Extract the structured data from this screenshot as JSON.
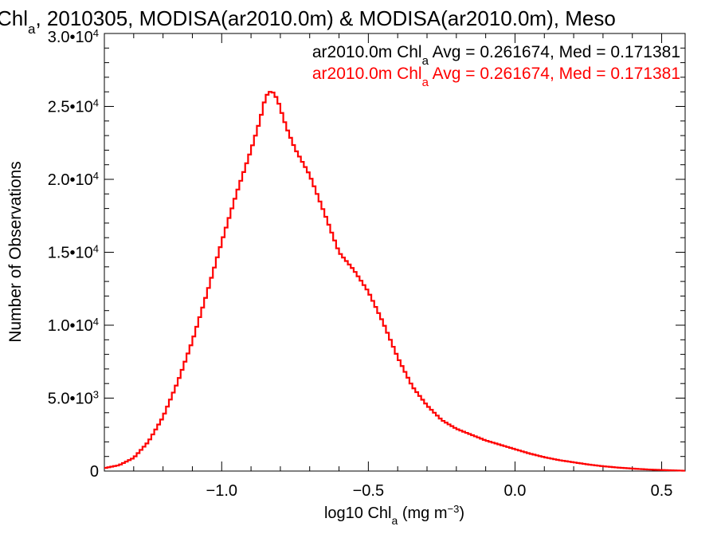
{
  "chart_data": {
    "type": "line",
    "title_parts": [
      "Chl",
      "a",
      ", 2010305, MODISA(ar2010.0m) & MODISA(ar2010.0m), Meso"
    ],
    "xlabel_parts": [
      "log10 Chl",
      "a",
      " (mg m",
      "−3",
      ")"
    ],
    "ylabel": "Number of Observations",
    "xlim": [
      -1.4,
      0.58
    ],
    "ylim": [
      0,
      30000
    ],
    "xticks": [
      {
        "value": -1.0,
        "label": "−1.0"
      },
      {
        "value": -0.5,
        "label": "−0.5"
      },
      {
        "value": 0.0,
        "label": "0.0"
      },
      {
        "value": 0.5,
        "label": "0.5"
      }
    ],
    "yticks": [
      {
        "value": 0,
        "mant": "0",
        "exp": ""
      },
      {
        "value": 5000,
        "mant": "5.0•10",
        "exp": "3"
      },
      {
        "value": 10000,
        "mant": "1.0•10",
        "exp": "4"
      },
      {
        "value": 15000,
        "mant": "1.5•10",
        "exp": "4"
      },
      {
        "value": 20000,
        "mant": "2.0•10",
        "exp": "4"
      },
      {
        "value": 25000,
        "mant": "2.5•10",
        "exp": "4"
      },
      {
        "value": 30000,
        "mant": "3.0•10",
        "exp": "4"
      }
    ],
    "annotations": [
      {
        "pre": "ar2010.0m Chl",
        "sub": "a",
        "post": " Avg = 0.261674, Med = 0.171381",
        "color": "#000000"
      },
      {
        "pre": "ar2010.0m Chl",
        "sub": "a",
        "post": " Avg = 0.261674, Med = 0.171381",
        "color": "#ff0000"
      }
    ],
    "series": [
      {
        "color": "#ff0000",
        "points": [
          [
            -1.4,
            200
          ],
          [
            -1.35,
            400
          ],
          [
            -1.3,
            900
          ],
          [
            -1.25,
            2000
          ],
          [
            -1.2,
            3700
          ],
          [
            -1.15,
            6100
          ],
          [
            -1.1,
            8900
          ],
          [
            -1.05,
            12200
          ],
          [
            -1.0,
            15700
          ],
          [
            -0.95,
            19000
          ],
          [
            -0.9,
            22000
          ],
          [
            -0.87,
            24000
          ],
          [
            -0.85,
            25700
          ],
          [
            -0.83,
            26100
          ],
          [
            -0.81,
            25500
          ],
          [
            -0.78,
            23600
          ],
          [
            -0.75,
            22100
          ],
          [
            -0.7,
            20300
          ],
          [
            -0.65,
            17700
          ],
          [
            -0.6,
            15000
          ],
          [
            -0.55,
            13800
          ],
          [
            -0.5,
            12300
          ],
          [
            -0.45,
            10200
          ],
          [
            -0.4,
            7800
          ],
          [
            -0.35,
            5800
          ],
          [
            -0.3,
            4500
          ],
          [
            -0.25,
            3500
          ],
          [
            -0.2,
            2900
          ],
          [
            -0.15,
            2500
          ],
          [
            -0.1,
            2100
          ],
          [
            -0.05,
            1800
          ],
          [
            0.0,
            1500
          ],
          [
            0.05,
            1200
          ],
          [
            0.1,
            950
          ],
          [
            0.15,
            750
          ],
          [
            0.2,
            600
          ],
          [
            0.25,
            450
          ],
          [
            0.3,
            330
          ],
          [
            0.35,
            240
          ],
          [
            0.4,
            170
          ],
          [
            0.45,
            110
          ],
          [
            0.5,
            70
          ],
          [
            0.55,
            40
          ],
          [
            0.58,
            20
          ]
        ]
      }
    ]
  }
}
